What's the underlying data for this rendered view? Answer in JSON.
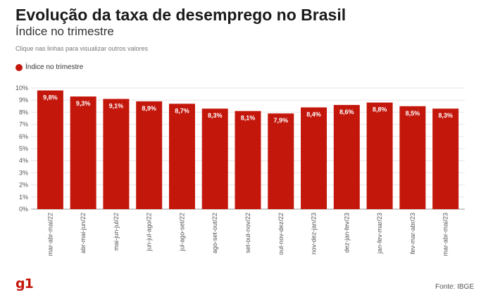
{
  "header": {
    "title": "Evolução da taxa de desemprego no Brasil",
    "subtitle": "Índice no trimestre",
    "hint": "Clique nas linhas para visualizar outros valores"
  },
  "footer": {
    "brand": "g1",
    "source": "Fonte: IBGE"
  },
  "colors": {
    "bar": "#c4170c",
    "grid": "#e6e6e6",
    "axis_text": "#555555"
  },
  "chart_data": {
    "type": "bar",
    "categories": [
      "mar-abr-mai/22",
      "abr-mai-jun/22",
      "mai-jun-jul/22",
      "jun-jul-ago/22",
      "jul-ago-set/22",
      "ago-set-out/22",
      "set-out-nov/22",
      "out-nov-dez/22",
      "nov-dez-jan/23",
      "dez-jan-fev/23",
      "jan-fev-mar/23",
      "fev-mar-abr/23",
      "mar-abr-mai/23"
    ],
    "series": [
      {
        "name": "Índice no trimestre",
        "values": [
          9.8,
          9.3,
          9.1,
          8.9,
          8.7,
          8.3,
          8.1,
          7.9,
          8.4,
          8.6,
          8.8,
          8.5,
          8.3
        ],
        "labels": [
          "9,8%",
          "9,3%",
          "9,1%",
          "8,9%",
          "8,7%",
          "8,3%",
          "8,1%",
          "7,9%",
          "8,4%",
          "8,6%",
          "8,8%",
          "8,5%",
          "8,3%"
        ]
      }
    ],
    "yticks": [
      "0%",
      "1%",
      "2%",
      "3%",
      "4%",
      "5%",
      "6%",
      "7%",
      "8%",
      "9%",
      "10%"
    ],
    "ylim": [
      0,
      10
    ],
    "grid": true,
    "legend": "top-left"
  }
}
